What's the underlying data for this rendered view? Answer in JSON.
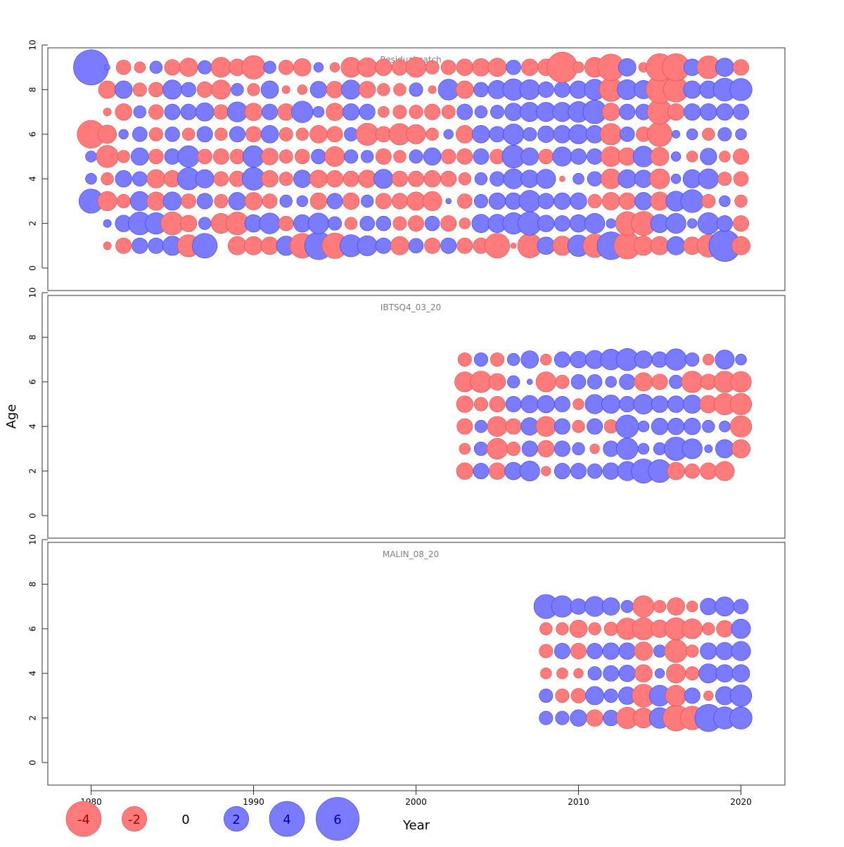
{
  "chart_data": {
    "type": "scatter",
    "subtype": "bubble-residuals",
    "xlabel": "Year",
    "ylabel": "Age",
    "xlim": [
      1977,
      2023
    ],
    "ylim": [
      0,
      10
    ],
    "x_ticks": [
      1980,
      1990,
      2000,
      2010,
      2020
    ],
    "y_ticks": [
      0,
      2,
      4,
      6,
      8,
      10
    ],
    "colors": {
      "positive": "#7b7bff",
      "negative": "#ff7b7b",
      "positive_edge": "#3a3aff",
      "negative_edge": "#e04a4a",
      "frame": "#333333",
      "panel_title": "#7f7f7f"
    },
    "legend": {
      "placement": "bottom",
      "entries": [
        {
          "label": "-4",
          "value": -4
        },
        {
          "label": "-2",
          "value": -2
        },
        {
          "label": "0",
          "value": 0
        },
        {
          "label": "2",
          "value": 2
        },
        {
          "label": "4",
          "value": 4
        },
        {
          "label": "6",
          "value": 6
        }
      ]
    },
    "panels": [
      {
        "title": "Residual catch",
        "first_year": 1980,
        "ages": [
          1,
          2,
          3,
          4,
          5,
          6,
          7,
          8,
          9
        ],
        "rows": {
          "9": [
            4,
            0.1,
            -0.7,
            -0.4,
            0.5,
            -0.8,
            -1.1,
            0.6,
            -1.3,
            -0.9,
            -1.8,
            0.5,
            -0.7,
            -1,
            0.3,
            -0.3,
            -1.3,
            -1.2,
            -0.9,
            -0.8,
            -1.3,
            -0.6,
            -0.7,
            -0.9,
            -1.0,
            -1.1,
            0.7,
            -0.9,
            -0.9,
            -3.0,
            -0.4,
            -1.3,
            -2.3,
            1.0,
            -0.3,
            -2.4,
            -2.4,
            0.9,
            -1.7,
            1.1,
            -0.8
          ],
          "8": [
            null,
            -1.0,
            1.0,
            -0.6,
            -0.7,
            1.2,
            0.7,
            -0.8,
            -1.2,
            0.5,
            -0.5,
            1.0,
            -0.2,
            -0.3,
            0.9,
            -0.9,
            1.2,
            -0.9,
            -0.5,
            -0.5,
            0.6,
            -0.2,
            1.4,
            -1.0,
            0.7,
            1.1,
            1.5,
            1.3,
            0.8,
            0.8,
            1.0,
            1.4,
            -1.8,
            1.3,
            1.1,
            -2.4,
            -2.0,
            1.0,
            1.0,
            1.7,
            1.6
          ],
          "7": [
            null,
            -0.2,
            -0.9,
            0.5,
            -0.7,
            0.8,
            0.8,
            1.1,
            -0.7,
            1.3,
            -1.0,
            0.8,
            -0.9,
            1.5,
            0.4,
            -1.0,
            0.9,
            0.8,
            -0.4,
            -0.6,
            -0.6,
            -0.8,
            -0.6,
            0.8,
            0.5,
            0.6,
            1.0,
            1.2,
            1.2,
            1.2,
            1.4,
            1.8,
            -1.0,
            0.8,
            0.8,
            -2.0,
            -0.9,
            0.9,
            0.9,
            0.9,
            0.8
          ],
          "6": [
            -2.5,
            -1.1,
            0.3,
            0.7,
            -0.6,
            0.7,
            -0.5,
            0.8,
            -0.5,
            0.8,
            -0.8,
            1.0,
            -0.6,
            -0.5,
            -1.0,
            -0.8,
            0.6,
            -1.6,
            -0.8,
            -1.5,
            -1.2,
            -0.5,
            0.3,
            -1.0,
            1.0,
            0.8,
            1.4,
            0.6,
            0.9,
            1.0,
            1.2,
            1.0,
            -1.5,
            0.7,
            -0.7,
            -2.0,
            0.2,
            0.4,
            -0.5,
            0.6,
            0.4
          ],
          "5": [
            0.4,
            -1.6,
            -0.5,
            1.0,
            -0.7,
            0.8,
            1.5,
            -0.7,
            -0.8,
            -0.7,
            1.5,
            -0.9,
            -0.6,
            -0.7,
            0.7,
            -1.3,
            0.6,
            0.5,
            -0.8,
            -0.5,
            0.6,
            1.0,
            -0.7,
            -0.8,
            0.8,
            -0.7,
            1.7,
            1.0,
            -0.7,
            1.2,
            0.8,
            0.8,
            -1.3,
            -1.0,
            1.4,
            -1.1,
            0.3,
            -0.4,
            0.9,
            -0.4,
            -0.8
          ],
          "4": [
            0.4,
            -0.5,
            0.9,
            0.7,
            -1.1,
            -0.9,
            1.6,
            1.1,
            -0.7,
            -0.8,
            1.7,
            -0.9,
            -0.6,
            1.0,
            -1.0,
            -0.9,
            -0.8,
            -1.0,
            1.2,
            -0.8,
            -0.8,
            -0.9,
            -0.8,
            -0.5,
            0.5,
            0.7,
            1.3,
            1.0,
            1.2,
            -0.1,
            0.4,
            0.7,
            -1.3,
            1.1,
            1.0,
            -1.3,
            0.3,
            1.1,
            1.3,
            -0.6,
            -0.7
          ],
          "3": [
            1.9,
            -1.2,
            -0.6,
            1.2,
            -1.1,
            1.1,
            -0.7,
            0.8,
            -0.6,
            1.0,
            -1.0,
            -0.7,
            0.5,
            0.4,
            -0.9,
            0.8,
            -0.9,
            0.5,
            -0.8,
            -0.8,
            -1.1,
            -1.2,
            0.1,
            -0.7,
            0.6,
            0.9,
            0.9,
            1.5,
            0.8,
            0.9,
            0.9,
            -0.6,
            -1.0,
            -0.9,
            1.0,
            -1.1,
            1.3,
            1.7,
            -0.6,
            0.4,
            -0.5
          ],
          "2": [
            null,
            0.2,
            0.9,
            1.7,
            1.5,
            -1.7,
            -0.9,
            0.5,
            -1.3,
            -1.7,
            1.0,
            1.4,
            -0.7,
            1.0,
            1.4,
            0.6,
            -0.5,
            0.7,
            0.7,
            -0.6,
            -0.8,
            0.7,
            -0.8,
            -0.4,
            1.1,
            1.1,
            1.5,
            1.8,
            0.9,
            0.8,
            1.0,
            1.3,
            0.3,
            -1.8,
            -1.9,
            1.1,
            1.3,
            0.3,
            1.5,
            0.8,
            -0.8
          ],
          "1": [
            null,
            -0.2,
            -0.8,
            0.8,
            0.8,
            1.2,
            -1.6,
            2.0,
            null,
            -1.1,
            -1.1,
            -1.0,
            1.2,
            -2.0,
            2.5,
            -2.1,
            1.6,
            1.3,
            0.8,
            -1.1,
            0.7,
            -0.8,
            0.8,
            -0.8,
            -0.8,
            -2.0,
            -0.1,
            -1.9,
            1.0,
            -1.2,
            1.5,
            -1.8,
            2.5,
            -2.3,
            -1.2,
            -1.1,
            1.1,
            -1.0,
            -1.7,
            3.2,
            -1.1
          ]
        }
      },
      {
        "title": "IBTSQ4_03_20",
        "first_year": 2003,
        "ages": [
          2,
          3,
          4,
          5,
          6,
          7
        ],
        "rows": {
          "7": [
            -0.6,
            0.6,
            -0.6,
            0.5,
            1.0,
            -0.4,
            0.8,
            0.9,
            1.1,
            1.4,
            1.6,
            1.0,
            0.8,
            1.5,
            0.6,
            -0.4,
            1.2,
            0.4
          ],
          "6": [
            -1.3,
            -1.5,
            -0.9,
            0.5,
            0.1,
            -1.3,
            -0.6,
            0.7,
            0.7,
            0.4,
            0.8,
            -1.1,
            -0.8,
            0.6,
            -1.5,
            -0.8,
            -1.5,
            -1.4
          ],
          "5": [
            -0.9,
            -0.6,
            -0.8,
            0.8,
            1.0,
            1.0,
            0.8,
            -0.4,
            1.2,
            1.1,
            0.8,
            1.3,
            0.9,
            0.9,
            1.1,
            -1.0,
            -1.5,
            -1.5
          ],
          "4": [
            -0.8,
            0.5,
            -1.3,
            -0.8,
            1.0,
            -1.3,
            0.8,
            -0.5,
            0.8,
            -0.6,
            1.7,
            0.4,
            0.9,
            0.9,
            0.9,
            0.5,
            0.4,
            -1.5
          ],
          "3": [
            -0.4,
            0.6,
            -1.4,
            -0.6,
            0.8,
            -0.9,
            0.8,
            0.5,
            -0.3,
            0.8,
            1.5,
            0.4,
            0.5,
            1.8,
            1.3,
            0.2,
            1.1,
            -1.1
          ],
          "2": [
            -0.9,
            0.8,
            -0.9,
            1.0,
            1.3,
            -0.3,
            0.8,
            0.8,
            0.7,
            0.9,
            1.2,
            1.9,
            1.7,
            -1.0,
            -0.7,
            -0.9,
            -1.2
          ]
        }
      },
      {
        "title": "MALIN_08_20",
        "first_year": 2008,
        "ages": [
          2,
          3,
          4,
          5,
          6,
          7
        ],
        "rows": {
          "7": [
            1.9,
            1.5,
            0.8,
            1.3,
            1.0,
            0.5,
            -1.5,
            -0.5,
            -1.0,
            -0.4,
            0.9,
            1.2,
            0.7
          ],
          "6": [
            -0.5,
            -0.5,
            -1.0,
            -0.5,
            -0.6,
            -1.5,
            -1.6,
            -1.0,
            -1.6,
            -1.3,
            -0.5,
            -0.9,
            1.2
          ],
          "5": [
            -0.6,
            0.8,
            -0.8,
            0.8,
            0.9,
            0.9,
            -1.1,
            0.5,
            -1.7,
            -0.5,
            0.9,
            1.0,
            1.2
          ],
          "4": [
            -0.4,
            -0.4,
            -0.3,
            0.6,
            0.8,
            0.9,
            -1.0,
            0.3,
            -1.2,
            -0.6,
            1.2,
            1.0,
            1.0
          ],
          "3": [
            0.6,
            -0.6,
            -0.7,
            1.1,
            0.6,
            1.0,
            -1.7,
            1.4,
            -1.4,
            0.8,
            -0.3,
            1.1,
            1.5
          ],
          "2": [
            0.6,
            0.6,
            0.9,
            -0.9,
            0.8,
            -1.5,
            -1.3,
            1.4,
            -2.2,
            -1.8,
            2.4,
            1.6,
            1.6
          ]
        }
      }
    ]
  }
}
